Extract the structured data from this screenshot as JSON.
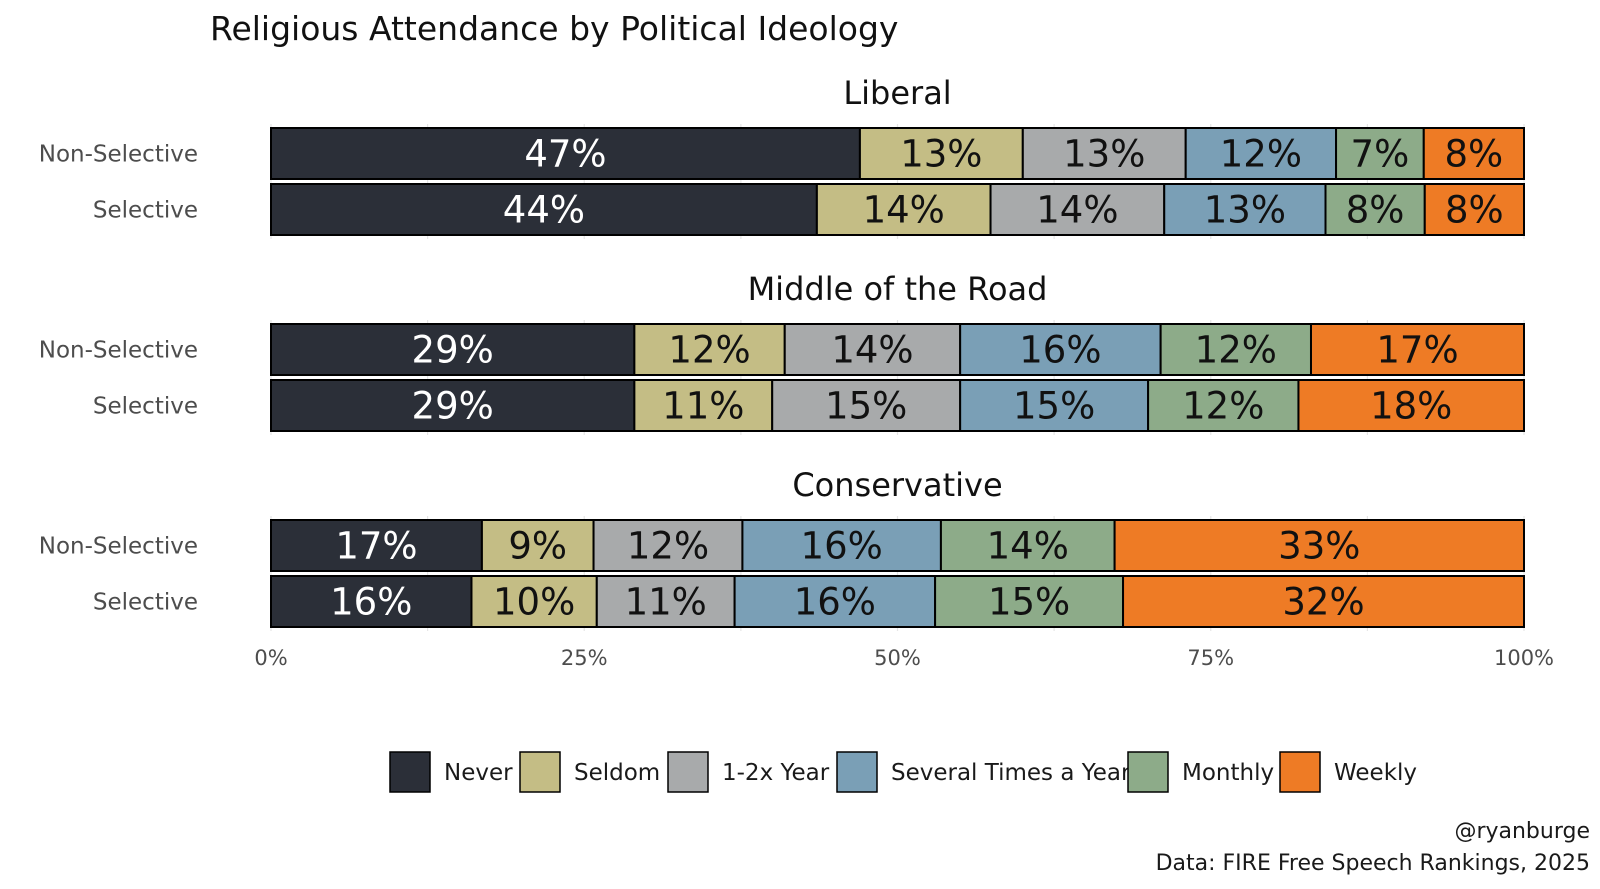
{
  "chart_data": {
    "type": "bar",
    "orientation": "horizontal",
    "stacked": true,
    "title": "Religious Attendance by Political Ideology",
    "caption_lines": [
      "@ryanburge",
      "Data: FIRE Free Speech Rankings, 2025"
    ],
    "categories": [
      "Never",
      "Seldom",
      "1-2x Year",
      "Several Times a Year",
      "Monthly",
      "Weekly"
    ],
    "colors": [
      "#2b2f38",
      "#c4bd85",
      "#a8aaab",
      "#7a9fb6",
      "#8dab89",
      "#ee7b25"
    ],
    "x_ticks": [
      "0%",
      "25%",
      "50%",
      "75%",
      "100%"
    ],
    "xlim": [
      0,
      100
    ],
    "legend_position": "bottom",
    "grid": true,
    "facets": [
      {
        "title": "Liberal",
        "rows": [
          {
            "label": "Non-Selective",
            "values": [
              47,
              13,
              13,
              12,
              7,
              8
            ]
          },
          {
            "label": "Selective",
            "values": [
              44,
              14,
              14,
              13,
              8,
              8
            ]
          }
        ]
      },
      {
        "title": "Middle of the Road",
        "rows": [
          {
            "label": "Non-Selective",
            "values": [
              29,
              12,
              14,
              16,
              12,
              17
            ]
          },
          {
            "label": "Selective",
            "values": [
              29,
              11,
              15,
              15,
              12,
              18
            ]
          }
        ]
      },
      {
        "title": "Conservative",
        "rows": [
          {
            "label": "Non-Selective",
            "values": [
              17,
              9,
              12,
              16,
              14,
              33
            ]
          },
          {
            "label": "Selective",
            "values": [
              16,
              10,
              11,
              16,
              15,
              32
            ]
          }
        ]
      }
    ]
  }
}
